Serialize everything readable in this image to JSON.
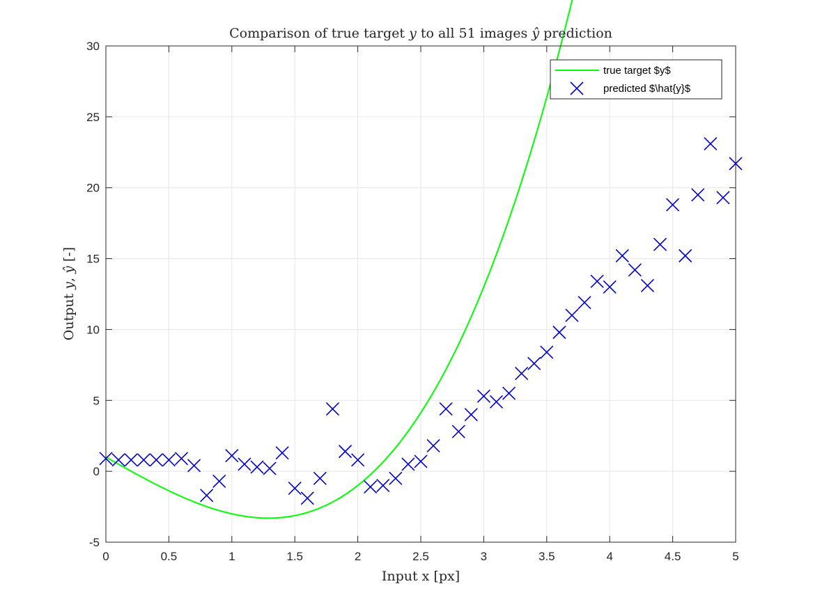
{
  "chart_data": {
    "type": "scatter",
    "title": "Comparison of true target y to all 51 images ŷ prediction",
    "xlabel": "Input x [px]",
    "ylabel": "Output y, ŷ [-]",
    "xlim": [
      0,
      5
    ],
    "ylim": [
      -5,
      30
    ],
    "xticks": [
      "0",
      "0.5",
      "1",
      "1.5",
      "2",
      "2.5",
      "3",
      "3.5",
      "4",
      "4.5",
      "5"
    ],
    "yticks": [
      "-5",
      "0",
      "5",
      "10",
      "15",
      "20",
      "25",
      "30"
    ],
    "grid": true,
    "legend_position": "top-right",
    "colors": {
      "true": "#00ff00",
      "predicted": "#0000cc",
      "axes": "#262626",
      "grid": "#e6e6e6"
    },
    "series": [
      {
        "name": "true target $y$",
        "kind": "line",
        "formula": "y = x^3 - 5x + 1"
      },
      {
        "name": "predicted $\\hat{y}$",
        "kind": "markers",
        "marker": "x",
        "x": [
          0,
          0.1,
          0.2,
          0.3,
          0.4,
          0.5,
          0.6,
          0.7,
          0.8,
          0.9,
          1.0,
          1.1,
          1.2,
          1.3,
          1.4,
          1.5,
          1.6,
          1.7,
          1.8,
          1.9,
          2.0,
          2.1,
          2.2,
          2.3,
          2.4,
          2.5,
          2.6,
          2.7,
          2.8,
          2.9,
          3.0,
          3.1,
          3.2,
          3.3,
          3.4,
          3.5,
          3.6,
          3.7,
          3.8,
          3.9,
          4.0,
          4.1,
          4.2,
          4.3,
          4.4,
          4.5,
          4.6,
          4.7,
          4.8,
          4.9,
          5.0
        ],
        "y": [
          0.9,
          0.8,
          0.8,
          0.8,
          0.8,
          0.8,
          0.9,
          0.4,
          -1.7,
          -0.7,
          1.1,
          0.5,
          0.3,
          0.2,
          1.3,
          -1.2,
          -1.9,
          -0.5,
          4.4,
          1.4,
          0.8,
          -1.1,
          -1.0,
          -0.5,
          0.5,
          0.7,
          1.8,
          4.4,
          2.8,
          4.0,
          5.3,
          4.9,
          5.5,
          6.9,
          7.6,
          8.4,
          9.8,
          11.0,
          11.9,
          13.4,
          13.0,
          15.2,
          14.2,
          13.1,
          16.0,
          18.8,
          15.2,
          19.5,
          23.1,
          19.3,
          21.7
        ]
      }
    ]
  }
}
